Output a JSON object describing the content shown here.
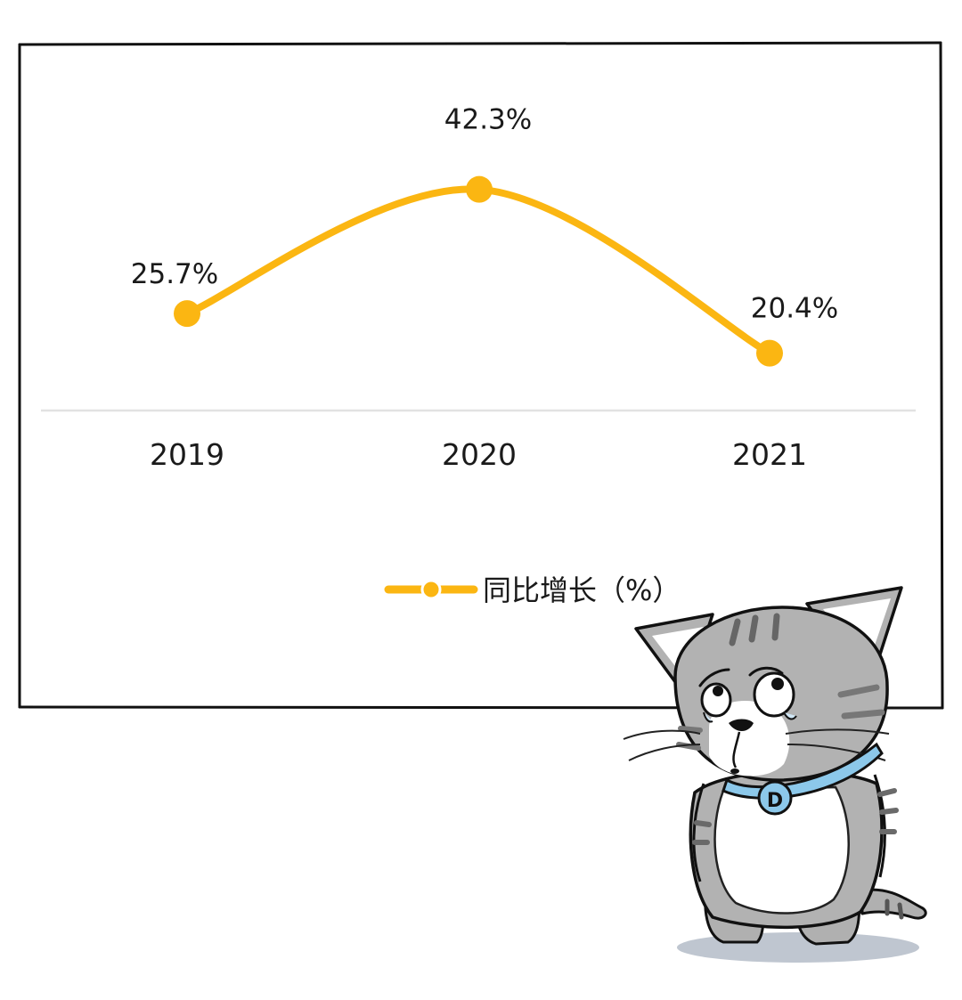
{
  "chart_data": {
    "type": "line",
    "categories": [
      "2019",
      "2020",
      "2021"
    ],
    "series": [
      {
        "name": "同比增长（%）",
        "values": [
          25.7,
          42.3,
          20.4
        ],
        "value_labels": [
          "25.7%",
          "42.3%",
          "20.4%"
        ]
      }
    ],
    "title": "",
    "xlabel": "",
    "ylabel": "",
    "grid": false,
    "legend_position": "bottom-center",
    "smooth": true
  },
  "colors": {
    "series": "#FBB612",
    "axis": "#E0E0E0",
    "frame": "#111111",
    "text": "#1A1A1A"
  },
  "illustration": {
    "icon": "sad-gray-tabby-cat-icon",
    "tag_letter": "D"
  }
}
